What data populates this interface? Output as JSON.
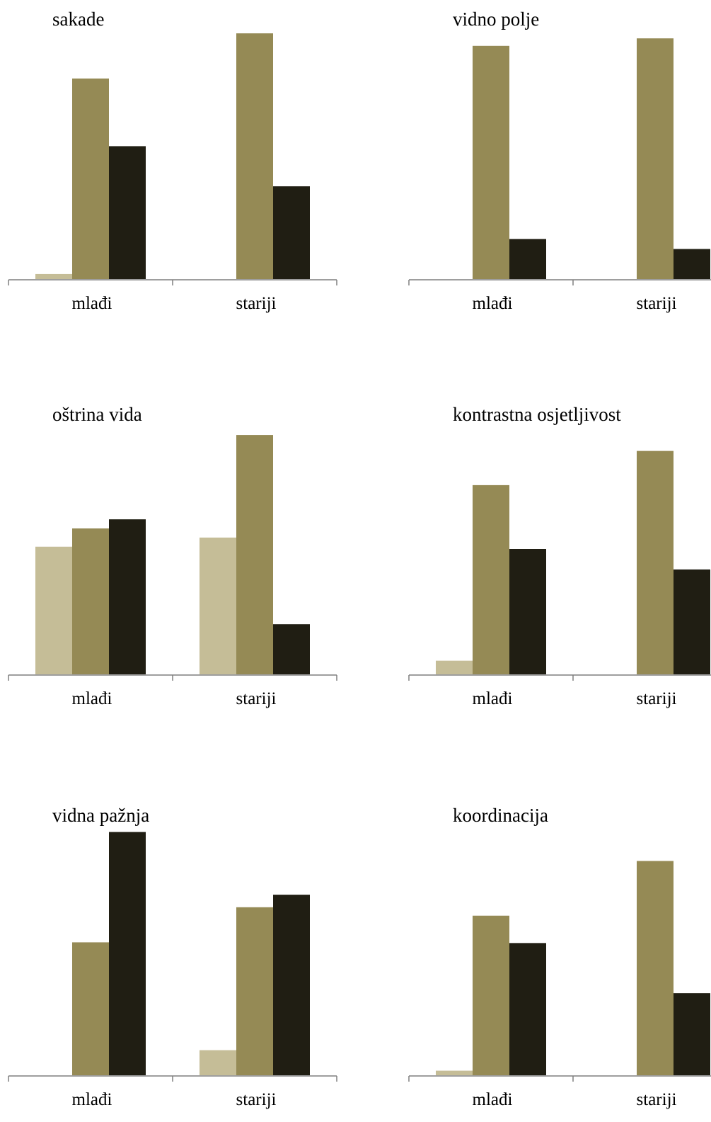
{
  "chart_data": [
    {
      "type": "bar",
      "title": "sakade",
      "categories": [
        "mlađi",
        "stariji"
      ],
      "series": [
        {
          "values": [
            2,
            0
          ]
        },
        {
          "values": [
            80,
            98
          ]
        },
        {
          "values": [
            53,
            37
          ]
        }
      ],
      "ylim": [
        0,
        100
      ],
      "grid": false,
      "legend": "none"
    },
    {
      "type": "bar",
      "title": "vidno polje",
      "categories": [
        "mlađi",
        "stariji"
      ],
      "series": [
        {
          "values": [
            0,
            0
          ]
        },
        {
          "values": [
            93,
            96
          ]
        },
        {
          "values": [
            16,
            12
          ]
        }
      ],
      "ylim": [
        0,
        100
      ],
      "grid": false,
      "legend": "none"
    },
    {
      "type": "bar",
      "title": "oštrina vida",
      "categories": [
        "mlađi",
        "stariji"
      ],
      "series": [
        {
          "values": [
            56,
            60
          ]
        },
        {
          "values": [
            64,
            105
          ]
        },
        {
          "values": [
            68,
            22
          ]
        }
      ],
      "ylim": [
        0,
        110
      ],
      "grid": false,
      "legend": "none"
    },
    {
      "type": "bar",
      "title": "kontrastna osjetljivost",
      "categories": [
        "mlađi",
        "stariji"
      ],
      "series": [
        {
          "values": [
            6,
            0
          ]
        },
        {
          "values": [
            83,
            98
          ]
        },
        {
          "values": [
            55,
            46
          ]
        }
      ],
      "ylim": [
        0,
        110
      ],
      "grid": false,
      "legend": "none"
    },
    {
      "type": "bar",
      "title": "vidna pažnja",
      "categories": [
        "mlađi",
        "stariji"
      ],
      "series": [
        {
          "values": [
            0,
            10
          ]
        },
        {
          "values": [
            53,
            67
          ]
        },
        {
          "values": [
            97,
            72
          ]
        }
      ],
      "ylim": [
        0,
        100
      ],
      "grid": false,
      "legend": "none"
    },
    {
      "type": "bar",
      "title": "koordinacija",
      "categories": [
        "mlađi",
        "stariji"
      ],
      "series": [
        {
          "values": [
            2,
            0
          ]
        },
        {
          "values": [
            70,
            94
          ]
        },
        {
          "values": [
            58,
            36
          ]
        }
      ],
      "ylim": [
        0,
        110
      ],
      "grid": false,
      "legend": "none"
    }
  ],
  "colors": {
    "series": [
      "#c5bd97",
      "#958a55",
      "#201e13"
    ],
    "axis": "#7f7f7f",
    "text": "#000000"
  }
}
